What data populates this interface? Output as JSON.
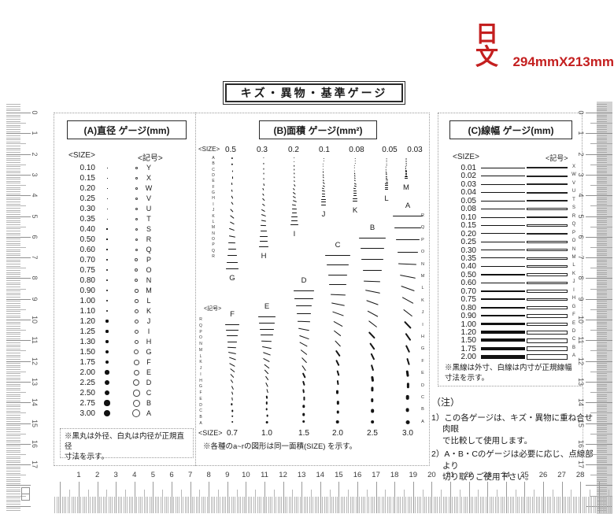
{
  "page": {
    "stamp": {
      "text": "日文",
      "size_text": "294mmX213mm",
      "color": "#c41f1f"
    },
    "title": "キズ・異物・基準ゲージ"
  },
  "panel_a": {
    "title": "(A)直径 ゲージ(mm)",
    "size_header": "<SIZE>",
    "symbol_header": "<記号>",
    "rows": [
      {
        "size": "0.10",
        "symbol": "Y"
      },
      {
        "size": "0.15",
        "symbol": "X"
      },
      {
        "size": "0.20",
        "symbol": "W"
      },
      {
        "size": "0.25",
        "symbol": "V"
      },
      {
        "size": "0.30",
        "symbol": "U"
      },
      {
        "size": "0.35",
        "symbol": "T"
      },
      {
        "size": "0.40",
        "symbol": "S"
      },
      {
        "size": "0.50",
        "symbol": "R"
      },
      {
        "size": "0.60",
        "symbol": "Q"
      },
      {
        "size": "0.70",
        "symbol": "P"
      },
      {
        "size": "0.75",
        "symbol": "O"
      },
      {
        "size": "0.80",
        "symbol": "N"
      },
      {
        "size": "0.90",
        "symbol": "M"
      },
      {
        "size": "1.00",
        "symbol": "L"
      },
      {
        "size": "1.10",
        "symbol": "K"
      },
      {
        "size": "1.20",
        "symbol": "J"
      },
      {
        "size": "1.25",
        "symbol": "I"
      },
      {
        "size": "1.30",
        "symbol": "H"
      },
      {
        "size": "1.50",
        "symbol": "G"
      },
      {
        "size": "1.75",
        "symbol": "F"
      },
      {
        "size": "2.00",
        "symbol": "E"
      },
      {
        "size": "2.25",
        "symbol": "D"
      },
      {
        "size": "2.50",
        "symbol": "C"
      },
      {
        "size": "2.75",
        "symbol": "B"
      },
      {
        "size": "3.00",
        "symbol": "A"
      }
    ],
    "note": "※黒丸は外径、白丸は内径が正規直径\n寸法を示す。"
  },
  "panel_b": {
    "title": "(B)面積 ゲージ(mm²)",
    "size_header": "<SIZE>",
    "symbol_header": "<記号>",
    "bottom_size_header": "<SIZE>",
    "row_letters_top": [
      "A",
      "B",
      "C",
      "D",
      "E",
      "F",
      "G",
      "H",
      "I",
      "J",
      "K",
      "L",
      "M",
      "N",
      "O",
      "P",
      "Q",
      "R"
    ],
    "row_letters_bottom": [
      "R",
      "Q",
      "P",
      "O",
      "N",
      "M",
      "L",
      "K",
      "J",
      "I",
      "H",
      "G",
      "F",
      "E",
      "D",
      "C",
      "B",
      "A"
    ],
    "right_letters": [
      "R",
      "Q",
      "P",
      "O",
      "N",
      "M",
      "L",
      "K",
      "J",
      "I",
      "H",
      "G",
      "F",
      "E",
      "D",
      "C",
      "B",
      "A"
    ],
    "top_columns": [
      {
        "size": "0.5",
        "letter": "G"
      },
      {
        "size": "0.3",
        "letter": "H"
      },
      {
        "size": "0.2",
        "letter": "I"
      },
      {
        "size": "0.1",
        "letter": "J"
      },
      {
        "size": "0.08",
        "letter": "K"
      },
      {
        "size": "0.05",
        "letter": "L"
      },
      {
        "size": "0.03",
        "letter": "M"
      }
    ],
    "bottom_columns": [
      {
        "size": "0.7",
        "letter": "F"
      },
      {
        "size": "1.0",
        "letter": "E"
      },
      {
        "size": "1.5",
        "letter": "D"
      },
      {
        "size": "2.0",
        "letter": "C"
      },
      {
        "size": "2.5",
        "letter": "B"
      },
      {
        "size": "3.0",
        "letter": "A"
      }
    ],
    "note": "※各種のa~rの図形は同一面積(SIZE) を示す。"
  },
  "panel_c": {
    "title": "(C)線幅 ゲージ(mm)",
    "size_header": "<SIZE>",
    "symbol_header": "<記号>",
    "rows": [
      {
        "size": "0.01",
        "symbol": "X"
      },
      {
        "size": "0.02",
        "symbol": "W"
      },
      {
        "size": "0.03",
        "symbol": "V"
      },
      {
        "size": "0.04",
        "symbol": "U"
      },
      {
        "size": "0.05",
        "symbol": "T"
      },
      {
        "size": "0.08",
        "symbol": "S"
      },
      {
        "size": "0.10",
        "symbol": "R"
      },
      {
        "size": "0.15",
        "symbol": "Q"
      },
      {
        "size": "0.20",
        "symbol": "P"
      },
      {
        "size": "0.25",
        "symbol": "O"
      },
      {
        "size": "0.30",
        "symbol": "N"
      },
      {
        "size": "0.35",
        "symbol": "M"
      },
      {
        "size": "0.40",
        "symbol": "L"
      },
      {
        "size": "0.50",
        "symbol": "K"
      },
      {
        "size": "0.60",
        "symbol": "J"
      },
      {
        "size": "0.70",
        "symbol": "I"
      },
      {
        "size": "0.75",
        "symbol": "H"
      },
      {
        "size": "0.80",
        "symbol": "G"
      },
      {
        "size": "0.90",
        "symbol": "F"
      },
      {
        "size": "1.00",
        "symbol": "E"
      },
      {
        "size": "1.20",
        "symbol": "D"
      },
      {
        "size": "1.50",
        "symbol": "C"
      },
      {
        "size": "1.75",
        "symbol": "B"
      },
      {
        "size": "2.00",
        "symbol": "A"
      }
    ],
    "note": "※黒線は外寸、白線は内寸が正規線幅\n寸法を示す。"
  },
  "notes": {
    "heading": "（注）",
    "items": [
      "1）この各ゲージは、キズ・異物に重ね合せ肉眼\nで比較して使用します。",
      "2）A・B・Cのゲージは必要に応じ、点線部より\n切り取りご使用下さい。"
    ]
  },
  "rulers": {
    "bottom_numbers": [
      "1",
      "2",
      "3",
      "4",
      "5",
      "6",
      "7",
      "8",
      "9",
      "10",
      "11",
      "12",
      "13",
      "14",
      "15",
      "16",
      "17",
      "18",
      "19",
      "20",
      "21",
      "22",
      "23",
      "24",
      "25",
      "26",
      "27",
      "28"
    ],
    "left_numbers": [
      "0",
      "1",
      "2",
      "3",
      "4",
      "5",
      "6",
      "7",
      "8",
      "9",
      "10",
      "11",
      "12",
      "13",
      "14",
      "15",
      "16",
      "17"
    ],
    "right_numbers": [
      "0",
      "1",
      "2",
      "3",
      "4",
      "5",
      "6",
      "7",
      "8",
      "9",
      "10",
      "11",
      "12",
      "13",
      "14",
      "15",
      "16",
      "17"
    ]
  }
}
